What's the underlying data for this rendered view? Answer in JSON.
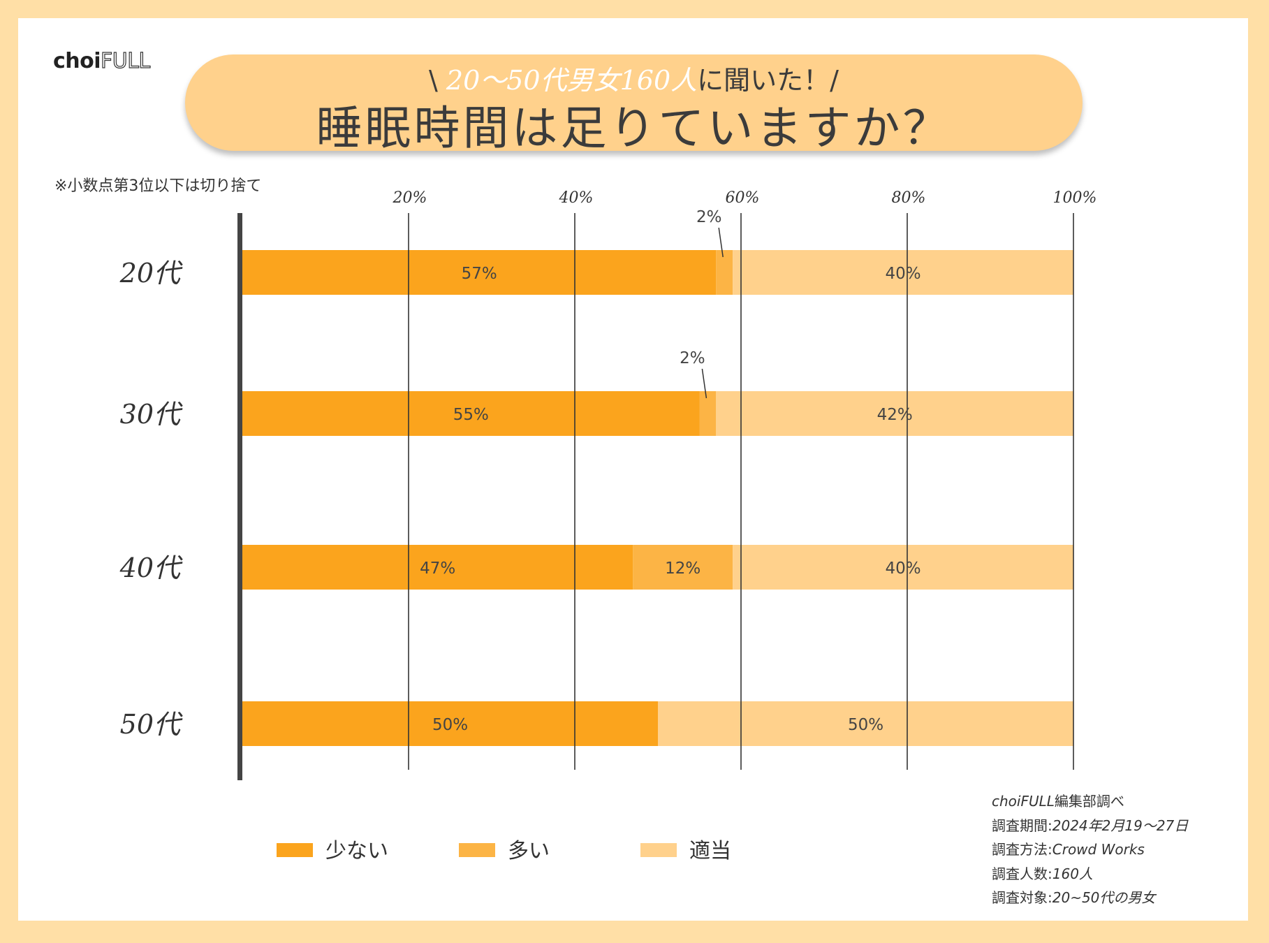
{
  "logo": {
    "part1": "choi",
    "part2": "FULL"
  },
  "banner": {
    "sub_open": "\\ ",
    "sub_highlight": "20〜50代男女160人",
    "sub_rest": "に聞いた！/",
    "title": "睡眠時間は足りていますか？"
  },
  "note": "※小数点第3位以下は切り捨て",
  "colors": {
    "background": "#FFDFA6",
    "little": "#FBA41D",
    "much": "#FCB445",
    "adequate": "#FFD18C",
    "banner": "#FFD18C"
  },
  "chart_data": {
    "type": "bar",
    "orientation": "horizontal",
    "stacked": true,
    "categories": [
      "20代",
      "30代",
      "40代",
      "50代"
    ],
    "series": [
      {
        "name": "少ない",
        "values": [
          57,
          55,
          47,
          50
        ]
      },
      {
        "name": "多い",
        "values": [
          2,
          2,
          12,
          0
        ]
      },
      {
        "name": "適当",
        "values": [
          40,
          42,
          40,
          50
        ]
      }
    ],
    "data_labels": [
      [
        "57%",
        "2%",
        "40%"
      ],
      [
        "55%",
        "2%",
        "42%"
      ],
      [
        "47%",
        "12%",
        "40%"
      ],
      [
        "50%",
        "",
        "50%"
      ]
    ],
    "xticks": [
      "20%",
      "40%",
      "60%",
      "80%",
      "100%"
    ],
    "xlim": [
      0,
      100
    ],
    "grid": true,
    "legend": "bottom"
  },
  "source": {
    "line1_it": "choiFULL",
    "line1_rest": "編集部調べ",
    "line2_label": "調査期間:",
    "line2_value": "2024年2月19〜27日",
    "line3_label": "調査方法:",
    "line3_value": "Crowd Works",
    "line4_label": "調査人数:",
    "line4_value": "160人",
    "line5_label": "調査対象:",
    "line5_value": "20~50代の男女"
  }
}
